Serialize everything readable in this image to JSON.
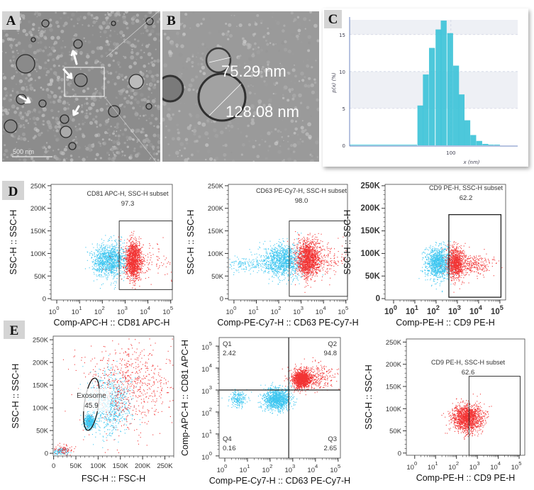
{
  "panels": {
    "a": "A",
    "b": "B",
    "c": "C",
    "d": "D",
    "e": "E"
  },
  "tem_a": {
    "scale_bar": "500 nm"
  },
  "tem_b": {
    "measurement_small": "75.29 nm",
    "measurement_large": "128.08 nm"
  },
  "colors": {
    "cyan": "#3cc6f0",
    "red": "#f23434",
    "hist": "#3ec3d8"
  },
  "chart_data": [
    {
      "id": "c",
      "type": "bar",
      "title": "",
      "xlabel": "x (nm)",
      "ylabel": "p(x) (%)",
      "xscale": "log",
      "xlim": [
        26.5,
        240
      ],
      "ylim": [
        0,
        17
      ],
      "xticks": [
        {
          "v": 100,
          "label": "100"
        }
      ],
      "yticks": [
        {
          "v": 0,
          "label": "0"
        },
        {
          "v": 5,
          "label": "5"
        },
        {
          "v": 10,
          "label": "10"
        },
        {
          "v": 15,
          "label": "15"
        }
      ],
      "bin_ratio": 1.08,
      "bin_centers_nm": [
        67,
        72,
        78,
        85,
        91,
        99,
        107,
        115,
        124,
        134,
        145,
        157,
        169,
        183
      ],
      "values": [
        5.4,
        9.6,
        13.2,
        15.7,
        16.9,
        15.2,
        10.8,
        6.9,
        3.4,
        1.4,
        0.6,
        0.2,
        0.1,
        0.1
      ]
    },
    {
      "id": "d1",
      "type": "scatter",
      "gate_title": "CD81 APC-H, SSC-H subset",
      "gate_value": "97.3",
      "xlabel": "Comp-APC-H :: CD81 APC-H",
      "ylabel": "SSC-H :: SSC-H",
      "x": {
        "scale": "log",
        "lim": [
          -0.25,
          5.07
        ],
        "ticks": [
          "0",
          "1",
          "2",
          "3",
          "4",
          "5"
        ]
      },
      "y": {
        "scale": "linear",
        "lim": [
          -3,
          253
        ],
        "ticks": [
          "0",
          "50K",
          "100K",
          "150K",
          "200K",
          "250K"
        ]
      },
      "gate": {
        "type": "rect",
        "x": [
          2.74,
          5.07
        ],
        "y": [
          20,
          172
        ]
      },
      "populations": [
        {
          "color": "cyan",
          "cx": 2.3,
          "sx": 0.38,
          "cy": 85,
          "sy": 18,
          "n": 1200
        },
        {
          "color": "red",
          "cx": 3.35,
          "sx": 0.17,
          "cy": 85,
          "sy": 20,
          "n": 1300
        },
        {
          "color": "red",
          "cx": 3.9,
          "sx": 0.8,
          "cy": 80,
          "sy": 22,
          "n": 150
        }
      ]
    },
    {
      "id": "d2",
      "type": "scatter",
      "gate_title": "CD63 PE-Cy7-H, SSC-H subset",
      "gate_value": "98.0",
      "xlabel": "Comp-PE-Cy7-H :: CD63 PE-Cy7-H",
      "ylabel": "SSC-H :: SSC-H",
      "x": {
        "scale": "log",
        "lim": [
          -0.25,
          5.07
        ],
        "ticks": [
          "0",
          "1",
          "2",
          "3",
          "4",
          "5"
        ]
      },
      "y": {
        "scale": "linear",
        "lim": [
          -3,
          253
        ],
        "ticks": [
          "0",
          "50K",
          "100K",
          "150K",
          "200K",
          "250K"
        ]
      },
      "gate": {
        "type": "rect",
        "x": [
          2.47,
          5.07
        ],
        "y": [
          5,
          172
        ]
      },
      "populations": [
        {
          "color": "cyan",
          "cx": 2.2,
          "sx": 0.45,
          "cy": 85,
          "sy": 18,
          "n": 1200
        },
        {
          "color": "cyan",
          "cx": 0.6,
          "sx": 0.5,
          "cy": 75,
          "sy": 10,
          "n": 150
        },
        {
          "color": "red",
          "cx": 3.3,
          "sx": 0.25,
          "cy": 90,
          "sy": 20,
          "n": 1400
        },
        {
          "color": "red",
          "cx": 4.0,
          "sx": 0.5,
          "cy": 85,
          "sy": 18,
          "n": 200
        }
      ]
    },
    {
      "id": "d3",
      "type": "scatter",
      "gate_title": "CD9 PE-H, SSC-H subset",
      "gate_value": "62.2",
      "xlabel": "Comp-PE-H :: CD9 PE-H",
      "ylabel": "SSC-H :: SSC-H",
      "x": {
        "scale": "log",
        "lim": [
          -0.4,
          5.27
        ],
        "ticks": [
          "0",
          "1",
          "2",
          "3",
          "4",
          "5"
        ]
      },
      "y": {
        "scale": "linear",
        "lim": [
          -3,
          253
        ],
        "ticks": [
          "0",
          "50K",
          "100K",
          "150K",
          "200K",
          "250K"
        ]
      },
      "gate": {
        "type": "rect",
        "x": [
          2.6,
          5.05
        ],
        "y": [
          3,
          186
        ]
      },
      "populations": [
        {
          "color": "cyan",
          "cx": 2.1,
          "sx": 0.3,
          "cy": 80,
          "sy": 18,
          "n": 1100
        },
        {
          "color": "red",
          "cx": 2.9,
          "sx": 0.2,
          "cy": 80,
          "sy": 17,
          "n": 900
        },
        {
          "color": "red",
          "cx": 3.7,
          "sx": 0.5,
          "cy": 75,
          "sy": 12,
          "n": 300
        }
      ]
    },
    {
      "id": "e1",
      "type": "scatter",
      "gate_title": "Exosome",
      "gate_value": "45.9",
      "xlabel": "FSC-H :: FSC-H",
      "ylabel": "SSC-H :: SSC-H",
      "x": {
        "scale": "linear",
        "lim": [
          -1,
          270
        ],
        "ticks": [
          "0",
          "50K",
          "100K",
          "150K",
          "200K",
          "250K"
        ]
      },
      "y": {
        "scale": "linear",
        "lim": [
          -6,
          258
        ],
        "ticks": [
          "0",
          "50K",
          "100K",
          "150K",
          "200K",
          "250K"
        ]
      },
      "gate": {
        "type": "ellipse",
        "cx": 85,
        "cy": 108,
        "rx": 16,
        "ry": 58
      },
      "populations": [
        {
          "color": "cyan",
          "cx": 80,
          "sx": 6,
          "cy": 70,
          "sy": 8,
          "n": 450
        },
        {
          "color": "cyan",
          "cx": 125,
          "sx": 25,
          "cy": 110,
          "sy": 35,
          "n": 700
        },
        {
          "color": "red",
          "cx": 170,
          "sx": 50,
          "cy": 150,
          "sy": 50,
          "n": 700
        },
        {
          "color": "cyan",
          "cx": 15,
          "sx": 10,
          "cy": 5,
          "sy": 5,
          "n": 120
        },
        {
          "color": "red",
          "cx": 20,
          "sx": 12,
          "cy": 8,
          "sy": 6,
          "n": 80
        }
      ]
    },
    {
      "id": "e2",
      "type": "scatter",
      "xlabel": "Comp-PE-Cy7-H :: CD63 PE-Cy7-H",
      "ylabel": "Comp-APC-H :: CD81 APC-H",
      "x": {
        "scale": "log",
        "lim": [
          -0.25,
          5.1
        ],
        "ticks": [
          "0",
          "1",
          "2",
          "3",
          "4",
          "5"
        ]
      },
      "y": {
        "scale": "log",
        "lim": [
          -0.1,
          5.39
        ],
        "ticks": [
          "0",
          "1",
          "2",
          "3",
          "4",
          "5"
        ]
      },
      "gate": {
        "type": "quadrant",
        "x": 2.82,
        "y": 3.0
      },
      "quadrants": [
        {
          "name": "Q1",
          "value": "2.42"
        },
        {
          "name": "Q2",
          "value": "94.8"
        },
        {
          "name": "Q3",
          "value": "2.65"
        },
        {
          "name": "Q4",
          "value": "0.16"
        }
      ],
      "populations": [
        {
          "color": "red",
          "cx": 3.4,
          "sx": 0.2,
          "cy": 3.5,
          "sy": 0.2,
          "n": 1300
        },
        {
          "color": "red",
          "cx": 4.0,
          "sx": 0.5,
          "cy": 3.6,
          "sy": 0.3,
          "n": 300
        },
        {
          "color": "cyan",
          "cx": 2.3,
          "sx": 0.3,
          "cy": 2.6,
          "sy": 0.25,
          "n": 1100
        },
        {
          "color": "cyan",
          "cx": 0.6,
          "sx": 0.2,
          "cy": 2.6,
          "sy": 0.2,
          "n": 200
        }
      ]
    },
    {
      "id": "e3",
      "type": "scatter",
      "gate_title": "CD9 PE-H, SSC-H subset",
      "gate_value": "62.6",
      "xlabel": "Comp-PE-H :: CD9 PE-H",
      "ylabel": "SSC-H :: SSC-H",
      "x": {
        "scale": "log",
        "lim": [
          -0.4,
          5.27
        ],
        "ticks": [
          "0",
          "1",
          "2",
          "3",
          "4",
          "5"
        ]
      },
      "y": {
        "scale": "linear",
        "lim": [
          -5,
          257
        ],
        "ticks": [
          "0",
          "50K",
          "100K",
          "150K",
          "200K",
          "250K"
        ]
      },
      "gate": {
        "type": "rect",
        "x": [
          2.6,
          5.05
        ],
        "y": [
          -5,
          173
        ]
      },
      "populations": [
        {
          "color": "red",
          "cx": 2.5,
          "sx": 0.35,
          "cy": 80,
          "sy": 15,
          "n": 1500
        }
      ]
    }
  ]
}
